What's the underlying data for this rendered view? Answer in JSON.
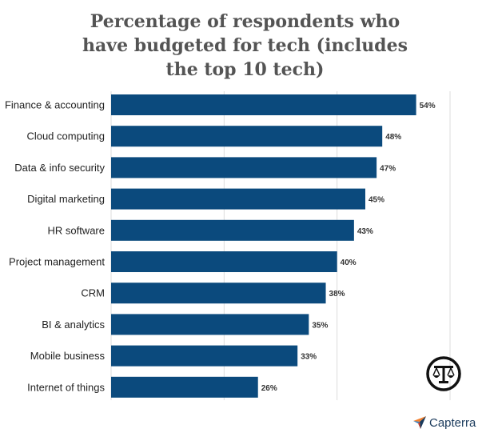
{
  "chart_data": {
    "type": "bar",
    "orientation": "horizontal",
    "title_lines": [
      "Percentage of respondents who",
      "have budgeted for tech (includes",
      "the top 10 tech)"
    ],
    "categories": [
      "Finance & accounting",
      "Cloud computing",
      "Data & info security",
      "Digital marketing",
      "HR software",
      "Project management",
      "CRM",
      "BI & analytics",
      "Mobile business",
      "Internet of things"
    ],
    "values": [
      54,
      48,
      47,
      45,
      43,
      40,
      38,
      35,
      33,
      26
    ],
    "value_labels": [
      "54%",
      "48%",
      "47%",
      "45%",
      "43%",
      "40%",
      "38%",
      "35%",
      "33%",
      "26%"
    ],
    "xlim": [
      0,
      60
    ],
    "grid": true,
    "bar_color": "#0b4a7d",
    "grid_color": "#dddddd"
  },
  "brand": {
    "name": "Capterra",
    "colors": [
      "#f3812f",
      "#2f7fc1",
      "#1a3a5c",
      "#c8402f"
    ]
  },
  "watermark_icon": "scales-of-justice-icon"
}
